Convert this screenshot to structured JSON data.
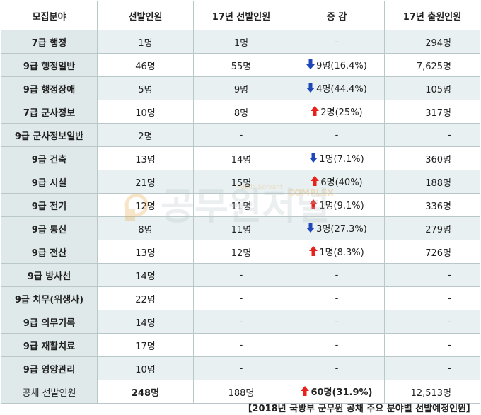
{
  "header": [
    "모집분야",
    "선발인원",
    "17년 선발인원",
    "증 감",
    "17년 출원인원"
  ],
  "rows": [
    {
      "field": "7급 행정",
      "sel": "1명",
      "prev": "1명",
      "dir": "",
      "change": "-",
      "apps": "294명"
    },
    {
      "field": "9급 행정일반",
      "sel": "46명",
      "prev": "55명",
      "dir": "down",
      "change": "9명(16.4%)",
      "apps": "7,625명"
    },
    {
      "field": "9급 행정장애",
      "sel": "5명",
      "prev": "9명",
      "dir": "down",
      "change": "4명(44.4%)",
      "apps": "105명"
    },
    {
      "field": "7급 군사정보",
      "sel": "10명",
      "prev": "8명",
      "dir": "up",
      "change": "2명(25%)",
      "apps": "317명"
    },
    {
      "field": "9급 군사정보일반",
      "sel": "2명",
      "prev": "-",
      "dir": "",
      "change": "-",
      "apps": "-"
    },
    {
      "field": "9급 건축",
      "sel": "13명",
      "prev": "14명",
      "dir": "down",
      "change": "1명(7.1%)",
      "apps": "360명"
    },
    {
      "field": "9급 시설",
      "sel": "21명",
      "prev": "15명",
      "dir": "up",
      "change": "6명(40%)",
      "apps": "188명"
    },
    {
      "field": "9급 전기",
      "sel": "12명",
      "prev": "11명",
      "dir": "up",
      "change": "1명(9.1%)",
      "apps": "336명"
    },
    {
      "field": "9급 통신",
      "sel": "8명",
      "prev": "11명",
      "dir": "down",
      "change": "3명(27.3%)",
      "apps": "279명"
    },
    {
      "field": "9급 전산",
      "sel": "13명",
      "prev": "12명",
      "dir": "up",
      "change": "1명(8.3%)",
      "apps": "726명"
    },
    {
      "field": "9급 방사선",
      "sel": "14명",
      "prev": "-",
      "dir": "",
      "change": "-",
      "apps": "-"
    },
    {
      "field": "9급 치무(위생사)",
      "sel": "22명",
      "prev": "-",
      "dir": "",
      "change": "-",
      "apps": "-"
    },
    {
      "field": "9급 의무기록",
      "sel": "14명",
      "prev": "-",
      "dir": "",
      "change": "-",
      "apps": "-"
    },
    {
      "field": "9급 재활치료",
      "sel": "17명",
      "prev": "-",
      "dir": "",
      "change": "-",
      "apps": "-"
    },
    {
      "field": "9급 영양관리",
      "sel": "10명",
      "prev": "-",
      "dir": "",
      "change": "-",
      "apps": "-"
    }
  ],
  "total": {
    "field": "공채 선발인원",
    "sel": "248명",
    "prev": "188명",
    "dir": "up",
    "change": "60명(31.9%)",
    "apps": "12,513명"
  },
  "caption": "【2018년 국방부 군무원 공채 주요 분야별 선발예정인원】",
  "watermark": {
    "text": "공무원저널",
    "sub": "Public Servant",
    "brand": "COMPLEX",
    "color": "#e8a33a"
  },
  "colors": {
    "up": "#e8211c",
    "down": "#1f47b8",
    "cat_bg": "#dfe9ea",
    "alt_bg": "#e8f0f1",
    "border": "#b9c7c9"
  }
}
